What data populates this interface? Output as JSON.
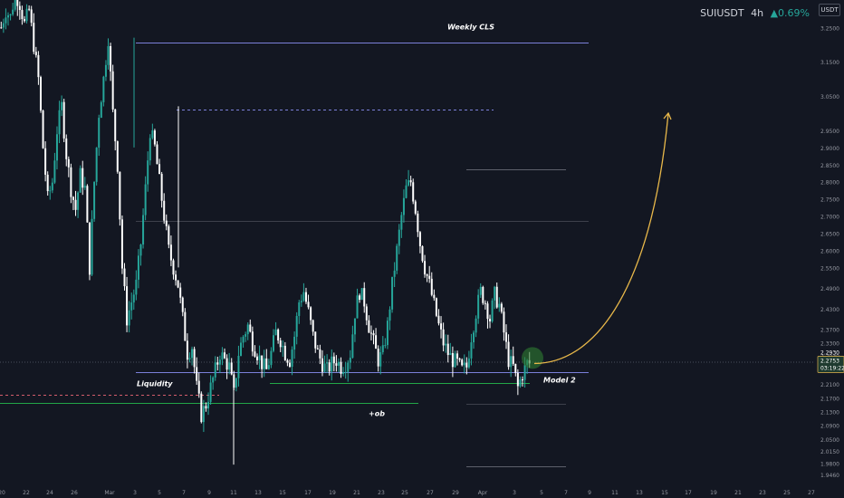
{
  "header": {
    "symbol": "SUIUSDT",
    "timeframe": "4h",
    "change": "▲0.69%",
    "currency_badge": "USDT"
  },
  "price_tags": {
    "current": "2.2753",
    "countdown": "03:19:22",
    "alt": "2.2930"
  },
  "colors": {
    "background": "#131722",
    "up": "#26a69a",
    "down": "#ffffff",
    "level_blue": "#7b80d9",
    "level_green": "#22a648",
    "projection": "#e8b84a",
    "grid_text": "#9598a1"
  },
  "annotations": {
    "weekly_cls": "Weekly CLS",
    "liquidity": "Liquidity",
    "model2": "Model 2",
    "ob": "+ob"
  },
  "chart_data": {
    "type": "candlestick",
    "symbol": "SUIUSDT",
    "interval": "4h",
    "x_ticks": [
      "20",
      "22",
      "24",
      "26",
      "Mar",
      "3",
      "5",
      "7",
      "9",
      "11",
      "13",
      "15",
      "17",
      "19",
      "21",
      "23",
      "25",
      "27",
      "29",
      "Apr",
      "3",
      "5",
      "7",
      "9",
      "11",
      "13",
      "15",
      "17",
      "19",
      "21",
      "23",
      "25",
      "27"
    ],
    "y_ticks": [
      3.25,
      3.15,
      3.05,
      2.95,
      2.9,
      2.85,
      2.8,
      2.75,
      2.7,
      2.65,
      2.6,
      2.55,
      2.49,
      2.43,
      2.37,
      2.33,
      2.293,
      2.21,
      2.17,
      2.13,
      2.09,
      2.05,
      2.015,
      1.98,
      1.946
    ],
    "ylim": [
      1.92,
      3.33
    ],
    "levels": [
      {
        "label": "Weekly CLS",
        "price": 3.205,
        "style": "solid"
      },
      {
        "label": "",
        "price": 3.01,
        "style": "dashed"
      },
      {
        "label": "",
        "price": 2.835,
        "style": "solid"
      },
      {
        "label": "",
        "price": 2.685,
        "style": "solid"
      },
      {
        "label": "Liquidity",
        "price": 2.246,
        "style": "solid"
      },
      {
        "label": "",
        "price": 2.214,
        "style": "solid"
      },
      {
        "label": "",
        "price": 2.178,
        "style": "dashed"
      },
      {
        "label": "+ob",
        "price": 2.154,
        "style": "solid"
      },
      {
        "label": "",
        "price": 2.152,
        "style": "solid"
      },
      {
        "label": "",
        "price": 1.97,
        "style": "solid"
      }
    ],
    "close_path": [
      3.25,
      3.3,
      3.28,
      3.35,
      3.32,
      3.26,
      3.3,
      3.2,
      3.1,
      2.9,
      2.75,
      2.8,
      2.95,
      3.02,
      2.88,
      2.78,
      2.72,
      2.82,
      2.78,
      2.55,
      2.8,
      3.0,
      3.1,
      3.22,
      3.0,
      2.85,
      2.55,
      2.4,
      2.45,
      2.5,
      2.62,
      2.78,
      2.95,
      2.9,
      2.8,
      2.7,
      2.6,
      2.55,
      2.5,
      2.4,
      2.3,
      2.32,
      2.2,
      2.12,
      2.15,
      2.2,
      2.25,
      2.3,
      2.28,
      2.26,
      2.18,
      2.3,
      2.35,
      2.38,
      2.33,
      2.3,
      2.27,
      2.25,
      2.3,
      2.36,
      2.34,
      2.3,
      2.28,
      2.35,
      2.45,
      2.48,
      2.42,
      2.35,
      2.3,
      2.27,
      2.25,
      2.27,
      2.28,
      2.26,
      2.27,
      2.3,
      2.42,
      2.48,
      2.45,
      2.38,
      2.33,
      2.28,
      2.3,
      2.38,
      2.5,
      2.6,
      2.7,
      2.78,
      2.8,
      2.72,
      2.62,
      2.55,
      2.5,
      2.44,
      2.38,
      2.33,
      2.3,
      2.28,
      2.27,
      2.25,
      2.26,
      2.35,
      2.42,
      2.48,
      2.45,
      2.4,
      2.47,
      2.44,
      2.36,
      2.28,
      2.26,
      2.2,
      2.24,
      2.27
    ]
  }
}
